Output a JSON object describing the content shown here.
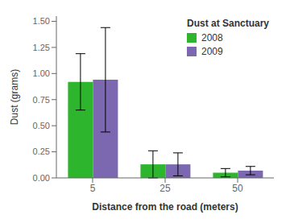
{
  "chart_data": {
    "type": "bar",
    "title": "Dust at Sanctuary",
    "xlabel": "Distance from the road (meters)",
    "ylabel": "Dust (grams)",
    "categories": [
      "5",
      "25",
      "50"
    ],
    "series": [
      {
        "name": "2008",
        "color": "#2db52d",
        "values": [
          0.92,
          0.13,
          0.05
        ],
        "errors": [
          0.27,
          0.13,
          0.04
        ]
      },
      {
        "name": "2009",
        "color": "#7b68b0",
        "values": [
          0.94,
          0.13,
          0.07
        ],
        "errors": [
          0.5,
          0.11,
          0.04
        ]
      }
    ],
    "ylim": [
      0,
      1.55
    ],
    "yticks": [
      {
        "value": 0,
        "label": "0.00"
      },
      0.25,
      {
        "value": 0.5,
        "label": "0.50"
      },
      0.75,
      {
        "value": 1,
        "label": "1.00"
      },
      1.25,
      {
        "value": 1.5,
        "label": "1.50"
      }
    ],
    "legend": "upper right",
    "grid": false
  }
}
